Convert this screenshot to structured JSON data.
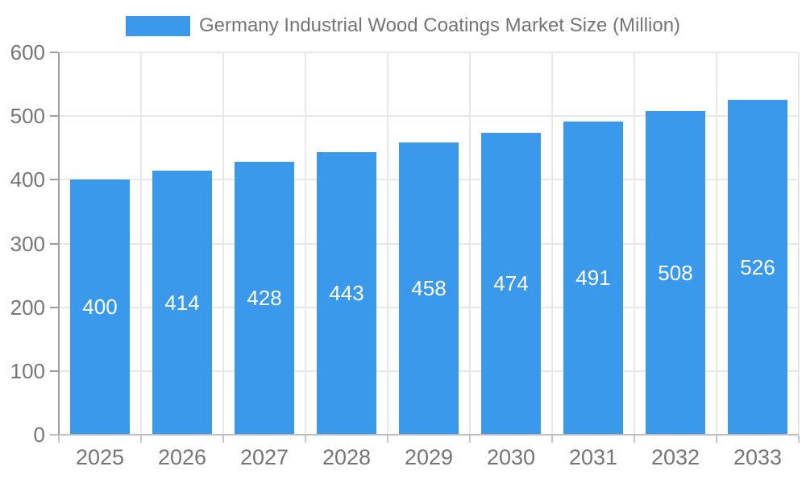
{
  "chart_data": {
    "type": "bar",
    "title": "Germany Industrial Wood Coatings Market Size (Million)",
    "categories": [
      "2025",
      "2026",
      "2027",
      "2028",
      "2029",
      "2030",
      "2031",
      "2032",
      "2033"
    ],
    "values": [
      400,
      414,
      428,
      443,
      458,
      474,
      491,
      508,
      526
    ],
    "xlabel": "",
    "ylabel": "",
    "ylim": [
      0,
      600
    ],
    "yticks": [
      0,
      100,
      200,
      300,
      400,
      500,
      600
    ],
    "grid": true,
    "legend_position": "top-center",
    "colors": {
      "bar": "#3b99ec",
      "value_label": "#ffffff",
      "axis_text": "#757575",
      "gridline": "#e8e8e8",
      "y_axis_line": "#9e9e9e",
      "x_axis_line": "#bdbdbd",
      "x_tick": "#c6c6c6"
    }
  }
}
